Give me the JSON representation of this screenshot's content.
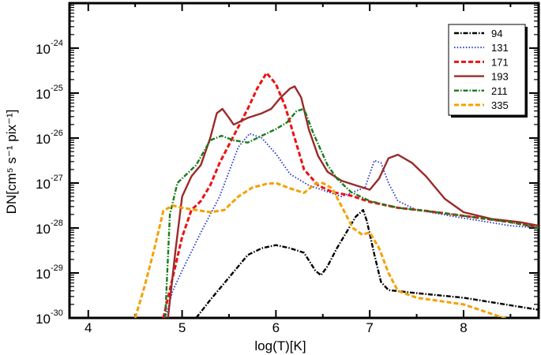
{
  "chart_data": {
    "type": "line",
    "xlabel": "log(T)[K]",
    "ylabel": "DN[cm⁵ s⁻¹ pix⁻¹]",
    "x_scale": "linear",
    "y_scale": "log",
    "xlim": [
      3.8,
      8.8
    ],
    "ylim_exponent": [
      -30,
      -23
    ],
    "x_ticks": [
      "4",
      "5",
      "6",
      "7",
      "8"
    ],
    "y_ticks": [
      "10",
      "10",
      "10",
      "10",
      "10",
      "10",
      "10"
    ],
    "y_tick_exponents": [
      "-30",
      "-29",
      "-28",
      "-27",
      "-26",
      "-25",
      "-24"
    ],
    "legend_position": "top-right",
    "grid": false,
    "series": [
      {
        "name": "94",
        "color": "#000000",
        "dash": "dashdot",
        "points": [
          [
            5.15,
            -30.0
          ],
          [
            5.3,
            -29.6
          ],
          [
            5.5,
            -29.1
          ],
          [
            5.7,
            -28.6
          ],
          [
            5.85,
            -28.45
          ],
          [
            6.0,
            -28.38
          ],
          [
            6.15,
            -28.45
          ],
          [
            6.3,
            -28.55
          ],
          [
            6.42,
            -28.95
          ],
          [
            6.48,
            -29.05
          ],
          [
            6.55,
            -28.85
          ],
          [
            6.65,
            -28.45
          ],
          [
            6.75,
            -28.1
          ],
          [
            6.85,
            -27.75
          ],
          [
            6.93,
            -27.6
          ],
          [
            6.97,
            -27.85
          ],
          [
            7.05,
            -28.6
          ],
          [
            7.12,
            -29.2
          ],
          [
            7.2,
            -29.38
          ],
          [
            7.5,
            -29.45
          ],
          [
            8.0,
            -29.55
          ],
          [
            8.5,
            -29.72
          ],
          [
            8.8,
            -29.82
          ]
        ]
      },
      {
        "name": "131",
        "color": "#2233cc",
        "dash": "dotted",
        "points": [
          [
            4.82,
            -30.0
          ],
          [
            4.9,
            -29.4
          ],
          [
            5.0,
            -28.95
          ],
          [
            5.2,
            -28.1
          ],
          [
            5.4,
            -27.3
          ],
          [
            5.6,
            -26.2
          ],
          [
            5.72,
            -25.9
          ],
          [
            5.85,
            -26.0
          ],
          [
            6.0,
            -26.35
          ],
          [
            6.15,
            -26.8
          ],
          [
            6.35,
            -27.05
          ],
          [
            6.7,
            -27.3
          ],
          [
            6.95,
            -27.1
          ],
          [
            7.05,
            -26.5
          ],
          [
            7.12,
            -26.55
          ],
          [
            7.2,
            -27.0
          ],
          [
            7.3,
            -27.4
          ],
          [
            7.5,
            -27.6
          ],
          [
            8.0,
            -27.78
          ],
          [
            8.5,
            -27.95
          ],
          [
            8.8,
            -28.0
          ]
        ]
      },
      {
        "name": "171",
        "color": "#ee1111",
        "dash": "dashed",
        "points": [
          [
            4.8,
            -30.0
          ],
          [
            4.9,
            -29.1
          ],
          [
            5.0,
            -28.2
          ],
          [
            5.1,
            -27.6
          ],
          [
            5.2,
            -27.4
          ],
          [
            5.3,
            -27.05
          ],
          [
            5.4,
            -26.55
          ],
          [
            5.55,
            -25.95
          ],
          [
            5.7,
            -25.35
          ],
          [
            5.8,
            -24.9
          ],
          [
            5.9,
            -24.55
          ],
          [
            6.0,
            -24.8
          ],
          [
            6.1,
            -25.3
          ],
          [
            6.2,
            -26.0
          ],
          [
            6.3,
            -26.7
          ],
          [
            6.45,
            -27.05
          ],
          [
            6.6,
            -27.2
          ],
          [
            6.8,
            -27.28
          ],
          [
            7.0,
            -27.42
          ],
          [
            7.3,
            -27.55
          ],
          [
            7.6,
            -27.62
          ],
          [
            8.0,
            -27.73
          ],
          [
            8.5,
            -27.87
          ],
          [
            8.8,
            -27.98
          ]
        ]
      },
      {
        "name": "193",
        "color": "#9b2a2a",
        "dash": "solid",
        "points": [
          [
            4.85,
            -30.0
          ],
          [
            4.93,
            -28.5
          ],
          [
            5.0,
            -27.3
          ],
          [
            5.1,
            -26.85
          ],
          [
            5.2,
            -26.6
          ],
          [
            5.3,
            -26.0
          ],
          [
            5.37,
            -25.45
          ],
          [
            5.43,
            -25.35
          ],
          [
            5.5,
            -25.55
          ],
          [
            5.55,
            -25.7
          ],
          [
            5.7,
            -25.55
          ],
          [
            5.85,
            -25.45
          ],
          [
            5.95,
            -25.35
          ],
          [
            6.05,
            -25.1
          ],
          [
            6.15,
            -24.9
          ],
          [
            6.2,
            -24.85
          ],
          [
            6.27,
            -25.1
          ],
          [
            6.35,
            -25.8
          ],
          [
            6.45,
            -26.4
          ],
          [
            6.55,
            -26.75
          ],
          [
            6.7,
            -26.95
          ],
          [
            6.85,
            -27.05
          ],
          [
            7.0,
            -27.15
          ],
          [
            7.1,
            -26.9
          ],
          [
            7.2,
            -26.45
          ],
          [
            7.3,
            -26.37
          ],
          [
            7.45,
            -26.55
          ],
          [
            7.6,
            -26.85
          ],
          [
            7.8,
            -27.35
          ],
          [
            8.0,
            -27.65
          ],
          [
            8.3,
            -27.8
          ],
          [
            8.6,
            -27.87
          ],
          [
            8.8,
            -27.95
          ]
        ]
      },
      {
        "name": "211",
        "color": "#1b7a1b",
        "dash": "dashdot",
        "points": [
          [
            4.82,
            -30.0
          ],
          [
            4.87,
            -27.7
          ],
          [
            4.95,
            -27.0
          ],
          [
            5.05,
            -26.8
          ],
          [
            5.15,
            -26.6
          ],
          [
            5.3,
            -26.05
          ],
          [
            5.42,
            -25.95
          ],
          [
            5.55,
            -26.05
          ],
          [
            5.7,
            -26.1
          ],
          [
            5.85,
            -25.95
          ],
          [
            6.0,
            -25.8
          ],
          [
            6.12,
            -25.65
          ],
          [
            6.22,
            -25.4
          ],
          [
            6.3,
            -25.35
          ],
          [
            6.4,
            -25.9
          ],
          [
            6.55,
            -26.6
          ],
          [
            6.65,
            -26.9
          ],
          [
            6.8,
            -27.2
          ],
          [
            7.0,
            -27.4
          ],
          [
            7.3,
            -27.55
          ],
          [
            7.6,
            -27.62
          ],
          [
            8.0,
            -27.73
          ],
          [
            8.5,
            -27.87
          ],
          [
            8.8,
            -28.0
          ]
        ]
      },
      {
        "name": "335",
        "color": "#f5a000",
        "dash": "dashed",
        "points": [
          [
            4.5,
            -30.0
          ],
          [
            4.6,
            -29.3
          ],
          [
            4.7,
            -28.5
          ],
          [
            4.8,
            -27.62
          ],
          [
            4.9,
            -27.5
          ],
          [
            5.0,
            -27.55
          ],
          [
            5.15,
            -27.6
          ],
          [
            5.3,
            -27.65
          ],
          [
            5.45,
            -27.6
          ],
          [
            5.6,
            -27.3
          ],
          [
            5.75,
            -27.1
          ],
          [
            5.9,
            -27.02
          ],
          [
            6.0,
            -27.0
          ],
          [
            6.15,
            -27.12
          ],
          [
            6.3,
            -27.22
          ],
          [
            6.42,
            -27.02
          ],
          [
            6.5,
            -27.0
          ],
          [
            6.6,
            -27.12
          ],
          [
            6.72,
            -27.6
          ],
          [
            6.82,
            -28.0
          ],
          [
            6.92,
            -28.15
          ],
          [
            7.0,
            -28.1
          ],
          [
            7.1,
            -28.45
          ],
          [
            7.2,
            -29.0
          ],
          [
            7.3,
            -29.4
          ],
          [
            7.5,
            -29.55
          ],
          [
            8.0,
            -29.7
          ],
          [
            8.5,
            -30.05
          ],
          [
            8.8,
            -30.22
          ]
        ]
      }
    ]
  }
}
